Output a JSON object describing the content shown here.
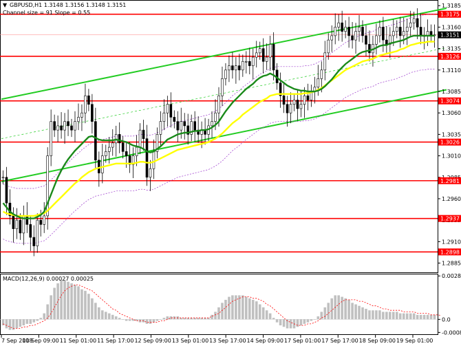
{
  "header": {
    "symbol_line": "GBPUSD,H1  1.3148 1.3156 1.3148 1.3151",
    "channel_line": "Channel size = 91 Slope = 0.55"
  },
  "colors": {
    "channel": "#22cc22",
    "level_line": "#ff0000",
    "ma_fast": "#1a8a1a",
    "ma_slow": "#ffff00",
    "bollinger": "#9933cc",
    "candle": "#000000",
    "macd_hist": "#c0c0c0",
    "macd_signal": "#ff0000",
    "level_label_bg": "#ff0000",
    "current_label_bg": "#000000"
  },
  "chart_data": [
    {
      "type": "candlestick",
      "title": "GBPUSD,H1",
      "ylim": [
        1.2875,
        1.319
      ],
      "y_ticks": [
        "1.3185",
        "1.3160",
        "1.3135",
        "1.3110",
        "1.3085",
        "1.3060",
        "1.3035",
        "1.3010",
        "1.2985",
        "1.2960",
        "1.2935",
        "1.2910",
        "1.2885"
      ],
      "x_ticks": [
        "7 Sep 2018",
        "10 Sep 09:00",
        "11 Sep 01:00",
        "11 Sep 17:00",
        "12 Sep 09:00",
        "13 Sep 01:00",
        "13 Sep 17:00",
        "14 Sep 09:00",
        "17 Sep 01:00",
        "17 Sep 17:00",
        "18 Sep 09:00",
        "19 Sep 01:00"
      ],
      "levels": [
        {
          "value": 1.3175,
          "label": "1.3175"
        },
        {
          "value": 1.3126,
          "label": "1.3126"
        },
        {
          "value": 1.3074,
          "label": "1.3074"
        },
        {
          "value": 1.3026,
          "label": "1.3026"
        },
        {
          "value": 1.2981,
          "label": "1.2981"
        },
        {
          "value": 1.2937,
          "label": "1.2937"
        },
        {
          "value": 1.2898,
          "label": "1.2898"
        }
      ],
      "current_price": {
        "value": 1.3151,
        "label": "1.3151"
      },
      "channel": {
        "upper": [
          [
            0,
            1.3076
          ],
          [
            130,
            1.3182
          ]
        ],
        "middle": [
          [
            0,
            1.303
          ],
          [
            130,
            1.3136
          ]
        ],
        "lower": [
          [
            0,
            1.298
          ],
          [
            130,
            1.3087
          ]
        ]
      },
      "closes": [
        1.2985,
        1.2955,
        1.294,
        1.2925,
        1.2935,
        1.292,
        1.294,
        1.293,
        1.2915,
        1.2905,
        1.2935,
        1.293,
        1.294,
        1.301,
        1.305,
        1.304,
        1.3045,
        1.304,
        1.305,
        1.3045,
        1.304,
        1.305,
        1.3055,
        1.306,
        1.308,
        1.307,
        1.305,
        1.3005,
        1.299,
        1.301,
        1.3015,
        1.302,
        1.3025,
        1.3035,
        1.3025,
        1.3015,
        1.301,
        1.3,
        1.301,
        1.302,
        1.304,
        1.303,
        1.2985,
        1.2995,
        1.3015,
        1.3035,
        1.305,
        1.306,
        1.307,
        1.3055,
        1.305,
        1.304,
        1.305,
        1.3045,
        1.3035,
        1.305,
        1.304,
        1.3035,
        1.304,
        1.3035,
        1.3045,
        1.305,
        1.306,
        1.308,
        1.31,
        1.311,
        1.3115,
        1.311,
        1.3115,
        1.311,
        1.312,
        1.312,
        1.3115,
        1.3125,
        1.313,
        1.3135,
        1.312,
        1.3125,
        1.314,
        1.311,
        1.3095,
        1.308,
        1.307,
        1.306,
        1.307,
        1.3075,
        1.3065,
        1.307,
        1.308,
        1.3075,
        1.3085,
        1.309,
        1.31,
        1.311,
        1.313,
        1.3145,
        1.315,
        1.316,
        1.3165,
        1.3155,
        1.316,
        1.315,
        1.3145,
        1.3155,
        1.316,
        1.315,
        1.314,
        1.313,
        1.314,
        1.315,
        1.316,
        1.3145,
        1.314,
        1.315,
        1.3155,
        1.316,
        1.315,
        1.3155,
        1.316,
        1.3165,
        1.317,
        1.316,
        1.315,
        1.315,
        1.3155,
        1.315,
        1.3151
      ],
      "ma_fast": [
        1.2955,
        1.295,
        1.2945,
        1.2942,
        1.294,
        1.2938,
        1.2937,
        1.2937,
        1.2937,
        1.2937,
        1.2939,
        1.2941,
        1.2945,
        1.2955,
        1.2965,
        1.2975,
        1.2985,
        1.2993,
        1.3,
        1.3006,
        1.3011,
        1.3016,
        1.302,
        1.3024,
        1.3028,
        1.3032,
        1.3033,
        1.3031,
        1.3029,
        1.3028,
        1.3028,
        1.3028,
        1.3028,
        1.3029,
        1.3028,
        1.3027,
        1.3026,
        1.3024,
        1.3022,
        1.3021,
        1.302,
        1.3018,
        1.3015,
        1.3014,
        1.3015,
        1.3018,
        1.3021,
        1.3025,
        1.3029,
        1.3031,
        1.3033,
        1.3035,
        1.3036,
        1.3037,
        1.3037,
        1.3038,
        1.3039,
        1.3039,
        1.304,
        1.304,
        1.3041,
        1.3043,
        1.3046,
        1.305,
        1.3056,
        1.3062,
        1.3067,
        1.3072,
        1.3076,
        1.308,
        1.3084,
        1.3088,
        1.3091,
        1.3094,
        1.3098,
        1.3101,
        1.3103,
        1.3104,
        1.3106,
        1.3104,
        1.3101,
        1.3098,
        1.3095,
        1.3092,
        1.309,
        1.3088,
        1.3087,
        1.3086,
        1.3086,
        1.3085,
        1.3085,
        1.3085,
        1.3086,
        1.3088,
        1.3091,
        1.3095,
        1.3099,
        1.3104,
        1.3109,
        1.3113,
        1.3117,
        1.312,
        1.3123,
        1.3126,
        1.3129,
        1.3131,
        1.3132,
        1.3133,
        1.3134,
        1.3136,
        1.3138,
        1.3139,
        1.3139,
        1.3141,
        1.3142,
        1.3143,
        1.3144,
        1.3145,
        1.3147,
        1.3149,
        1.315,
        1.315,
        1.315,
        1.315,
        1.315,
        1.315,
        1.315
      ],
      "ma_slow": [
        1.2945,
        1.2943,
        1.2942,
        1.2941,
        1.294,
        1.294,
        1.294,
        1.294,
        1.294,
        1.294,
        1.2941,
        1.2942,
        1.2943,
        1.2946,
        1.295,
        1.2954,
        1.2958,
        1.2962,
        1.2966,
        1.297,
        1.2974,
        1.2978,
        1.2981,
        1.2985,
        1.2988,
        1.2991,
        1.2993,
        1.2995,
        1.2996,
        1.2997,
        1.2998,
        1.2999,
        1.3,
        1.3001,
        1.3001,
        1.3001,
        1.3001,
        1.3001,
        1.3001,
        1.3002,
        1.3003,
        1.3003,
        1.3002,
        1.3002,
        1.3003,
        1.3005,
        1.3007,
        1.3009,
        1.3011,
        1.3013,
        1.3015,
        1.3017,
        1.3018,
        1.3019,
        1.302,
        1.3021,
        1.3022,
        1.3023,
        1.3024,
        1.3025,
        1.3026,
        1.3028,
        1.303,
        1.3033,
        1.3036,
        1.304,
        1.3044,
        1.3048,
        1.3051,
        1.3054,
        1.3058,
        1.3061,
        1.3064,
        1.3067,
        1.307,
        1.3073,
        1.3075,
        1.3077,
        1.308,
        1.3081,
        1.3082,
        1.3082,
        1.3082,
        1.3082,
        1.3082,
        1.3082,
        1.3082,
        1.3082,
        1.3083,
        1.3083,
        1.3084,
        1.3085,
        1.3087,
        1.3089,
        1.3092,
        1.3095,
        1.3098,
        1.3101,
        1.3104,
        1.3107,
        1.311,
        1.3112,
        1.3114,
        1.3116,
        1.3118,
        1.312,
        1.3121,
        1.3122,
        1.3123,
        1.3125,
        1.3127,
        1.3128,
        1.3129,
        1.313,
        1.3131,
        1.3132,
        1.3134,
        1.3135,
        1.3137,
        1.3139,
        1.314,
        1.3141,
        1.3142,
        1.3142,
        1.3143,
        1.3143,
        1.3143
      ]
    },
    {
      "type": "bar",
      "title": "MACD(12,26,9) 0.00027 0.00025",
      "ylim": [
        -0.0009,
        0.0029
      ],
      "y_ticks": [
        "0.00289",
        "0.0",
        "-0.00087"
      ],
      "histogram": [
        -0.0004,
        -0.0006,
        -0.0007,
        -0.0007,
        -0.0006,
        -0.0005,
        -0.0004,
        -0.0003,
        -0.0003,
        -0.0002,
        -0.0001,
        0.0001,
        0.0004,
        0.001,
        0.0016,
        0.0021,
        0.0024,
        0.0026,
        0.0026,
        0.0025,
        0.0024,
        0.0023,
        0.0022,
        0.002,
        0.0019,
        0.0017,
        0.0014,
        0.0011,
        0.0008,
        0.0006,
        0.0005,
        0.0004,
        0.0003,
        0.0002,
        0.0001,
        0.0,
        -0.0001,
        -0.0001,
        -0.0001,
        -0.0001,
        -0.0002,
        -0.0002,
        -0.0003,
        -0.0003,
        -0.0002,
        -0.0001,
        0.0,
        0.0001,
        0.0002,
        0.0002,
        0.0002,
        0.0002,
        0.0001,
        0.0001,
        0.0001,
        0.0001,
        0.0001,
        0.0001,
        0.0001,
        0.0001,
        0.0001,
        0.0003,
        0.0005,
        0.0008,
        0.0011,
        0.0013,
        0.0015,
        0.0016,
        0.0016,
        0.0016,
        0.0016,
        0.0015,
        0.0014,
        0.0013,
        0.0012,
        0.001,
        0.0008,
        0.0006,
        0.0004,
        0.0001,
        -0.0002,
        -0.0004,
        -0.0005,
        -0.0006,
        -0.0006,
        -0.0006,
        -0.0005,
        -0.0004,
        -0.0003,
        -0.0002,
        -0.0001,
        0.0,
        0.0002,
        0.0005,
        0.0008,
        0.0011,
        0.0014,
        0.0016,
        0.0016,
        0.0015,
        0.0014,
        0.0013,
        0.0011,
        0.001,
        0.0009,
        0.0008,
        0.0007,
        0.0006,
        0.0006,
        0.0006,
        0.0006,
        0.0005,
        0.0005,
        0.0005,
        0.0005,
        0.0005,
        0.0004,
        0.0004,
        0.0004,
        0.0004,
        0.0004,
        0.0003,
        0.0003,
        0.0003,
        0.0003,
        0.0003,
        0.0003
      ],
      "signal": [
        -0.0003,
        -0.0004,
        -0.0005,
        -0.0006,
        -0.0006,
        -0.0006,
        -0.0005,
        -0.0005,
        -0.0004,
        -0.0004,
        -0.0003,
        -0.0002,
        -0.0001,
        0.0001,
        0.0004,
        0.0008,
        0.0012,
        0.0016,
        0.0019,
        0.0021,
        0.0022,
        0.0023,
        0.0023,
        0.0022,
        0.0021,
        0.002,
        0.0019,
        0.0017,
        0.0015,
        0.0013,
        0.0011,
        0.0009,
        0.0007,
        0.0006,
        0.0004,
        0.0003,
        0.0002,
        0.0001,
        0.0,
        -0.0001,
        -0.0001,
        -0.0001,
        -0.0002,
        -0.0002,
        -0.0002,
        -0.0002,
        -0.0001,
        -0.0001,
        0.0,
        0.0001,
        0.0001,
        0.0001,
        0.0001,
        0.0001,
        0.0001,
        0.0001,
        0.0001,
        0.0001,
        0.0001,
        0.0001,
        0.0001,
        0.0002,
        0.0003,
        0.0004,
        0.0006,
        0.0008,
        0.001,
        0.0012,
        0.0013,
        0.0014,
        0.0015,
        0.0015,
        0.0015,
        0.0014,
        0.0014,
        0.0013,
        0.0012,
        0.001,
        0.0009,
        0.0007,
        0.0005,
        0.0003,
        0.0001,
        -0.0001,
        -0.0002,
        -0.0003,
        -0.0004,
        -0.0004,
        -0.0004,
        -0.0003,
        -0.0003,
        -0.0002,
        -0.0001,
        0.0001,
        0.0002,
        0.0004,
        0.0006,
        0.0008,
        0.001,
        0.0012,
        0.0013,
        0.0013,
        0.0013,
        0.0013,
        0.0012,
        0.0012,
        0.0011,
        0.001,
        0.0009,
        0.0009,
        0.0008,
        0.0007,
        0.0007,
        0.0006,
        0.0006,
        0.0006,
        0.0006,
        0.0005,
        0.0005,
        0.0005,
        0.0005,
        0.0004,
        0.0004,
        0.0004,
        0.0004,
        0.0003,
        0.0003,
        0.0003,
        0.00025
      ]
    }
  ]
}
